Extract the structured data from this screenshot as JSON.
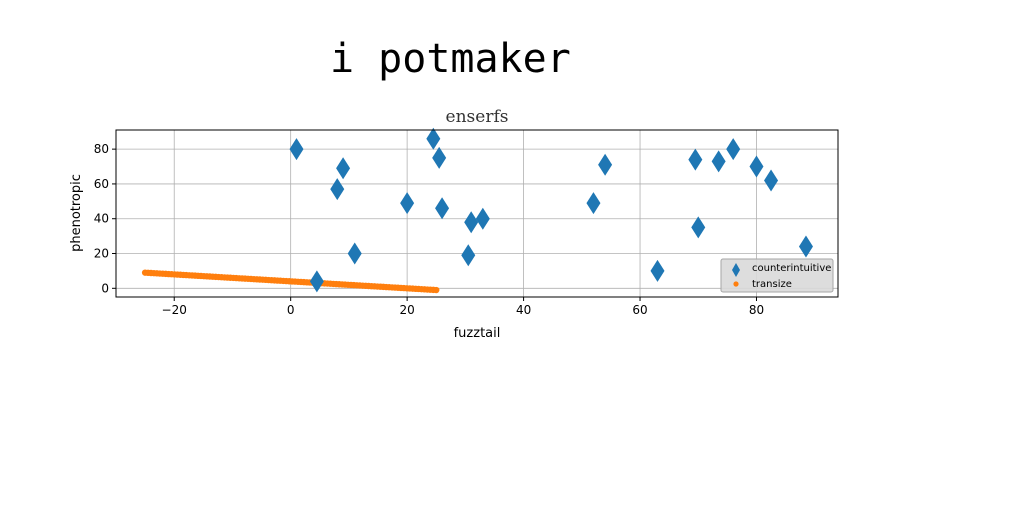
{
  "page": {
    "title": "i potmaker"
  },
  "chart_data": {
    "type": "scatter",
    "title": "enserfs",
    "xlabel": "fuzztail",
    "ylabel": "phenotropic",
    "xlim": [
      -30,
      94
    ],
    "ylim": [
      -5,
      91
    ],
    "xticks": [
      -20,
      0,
      20,
      40,
      60,
      80
    ],
    "yticks": [
      0,
      20,
      40,
      60,
      80
    ],
    "grid": true,
    "legend_position": "lower-right",
    "series": [
      {
        "name": "counterintuitive",
        "marker": "diamond",
        "color": "#1f77b4",
        "points": [
          [
            1,
            80
          ],
          [
            4.5,
            4
          ],
          [
            8,
            57
          ],
          [
            9,
            69
          ],
          [
            11,
            20
          ],
          [
            20,
            49
          ],
          [
            24.5,
            86
          ],
          [
            25.5,
            75
          ],
          [
            26,
            46
          ],
          [
            30.5,
            19
          ],
          [
            31,
            38
          ],
          [
            33,
            40
          ],
          [
            52,
            49
          ],
          [
            54,
            71
          ],
          [
            63,
            10
          ],
          [
            69.5,
            74
          ],
          [
            70,
            35
          ],
          [
            73.5,
            73
          ],
          [
            76,
            80
          ],
          [
            80,
            70
          ],
          [
            82.5,
            62
          ],
          [
            88.5,
            24
          ]
        ]
      },
      {
        "name": "transize",
        "marker": "circle",
        "color": "#ff7f0e",
        "line": {
          "x_start": -25,
          "x_end": 25,
          "y_start": 9,
          "y_end": -1,
          "count": 100
        }
      }
    ]
  }
}
